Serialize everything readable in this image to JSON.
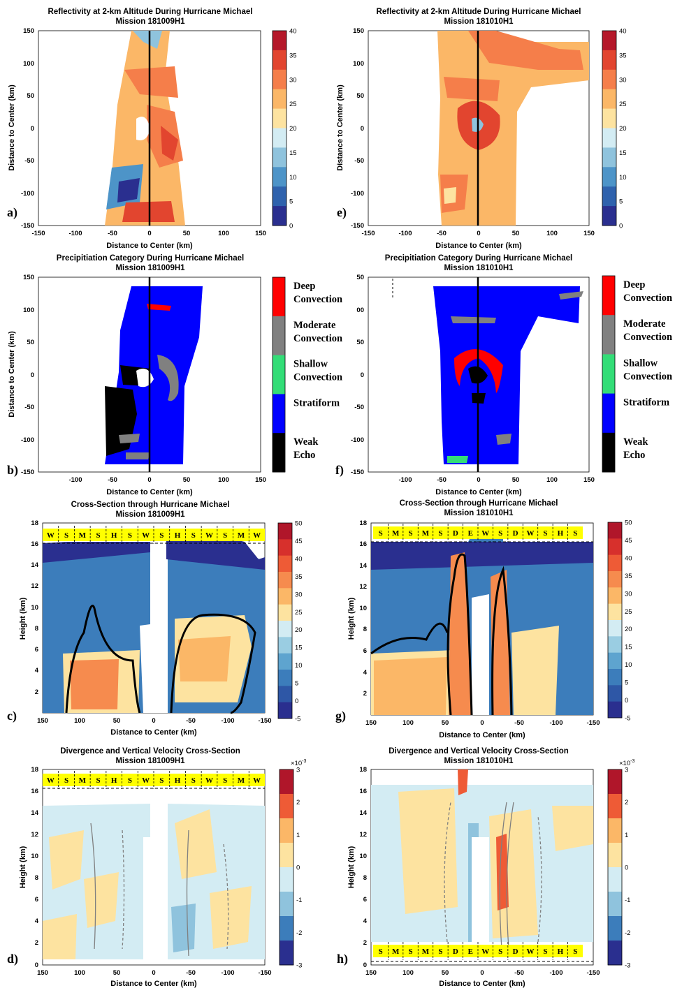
{
  "panels": [
    {
      "letter": "a)",
      "title": [
        "Reflectivity at 2-km Altitude During Hurricane Michael",
        "Mission 181009H1"
      ]
    },
    {
      "letter": "e)",
      "title": [
        "Reflectivity at 2-km Altitude During Hurricane Michael",
        "Mission 181010H1"
      ]
    },
    {
      "letter": "b)",
      "title": [
        "Precipitiation Category During Hurricane Michael",
        "Mission 181009H1"
      ]
    },
    {
      "letter": "f)",
      "title": [
        "Precipitiation Category During Hurricane Michael",
        "Mission 181010H1"
      ]
    },
    {
      "letter": "c)",
      "title": [
        "Cross-Section through Hurricane Michael",
        "Mission 181009H1"
      ]
    },
    {
      "letter": "g)",
      "title": [
        "Cross-Section through Hurricane Michael",
        "Mission 181010H1"
      ]
    },
    {
      "letter": "d)",
      "title": [
        "Divergence and Vertical Velocity Cross-Section",
        "Mission 181009H1"
      ]
    },
    {
      "letter": "h)",
      "title": [
        "Divergence and Vertical Velocity Cross-Section",
        "Mission 181010H1"
      ]
    }
  ],
  "axes": {
    "plan_x_label": "Distance to Center (km)",
    "plan_y_label": "Distance to Center (km)",
    "section_x_label": "Distance to Center (km)",
    "section_y_label": "Height (km)",
    "plan_xticks": [
      "-150",
      "-100",
      "-50",
      "0",
      "50",
      "100",
      "150"
    ],
    "plan_yticks": [
      "150",
      "100",
      "50",
      "0",
      "-50",
      "-100",
      "-150"
    ],
    "category_xticks": [
      "-100",
      "-50",
      "0",
      "50",
      "100",
      "150"
    ],
    "category_yticks_b": [
      "150",
      "100",
      "50",
      "0",
      "-50",
      "-100",
      "-150"
    ],
    "category_yticks_f": [
      "50",
      "00",
      "50",
      "0",
      "-50",
      "-100",
      "-150"
    ],
    "section_xticks": [
      "150",
      "100",
      "50",
      "0",
      "-50",
      "-100",
      "-150"
    ],
    "section_yticks": [
      "18",
      "16",
      "14",
      "12",
      "10",
      "8",
      "6",
      "4",
      "2",
      "0"
    ]
  },
  "colorbars": {
    "reflectivity_ticks": [
      "40",
      "35",
      "30",
      "25",
      "20",
      "15",
      "10",
      "5",
      "0"
    ],
    "section_ticks": [
      "50",
      "45",
      "40",
      "35",
      "30",
      "25",
      "20",
      "15",
      "10",
      "5",
      "0",
      "-5"
    ],
    "divergence_ticks": [
      "3",
      "2",
      "1",
      "0",
      "-1",
      "-2",
      "-3"
    ],
    "divergence_exponent": "×10",
    "divergence_exponent_power": "-3",
    "colors_reflectivity": [
      "#2a2f8f",
      "#2f62ad",
      "#4d94c8",
      "#8fc3dd",
      "#d3ecf3",
      "#fde3a0",
      "#fbb767",
      "#f57e4a",
      "#e2452f",
      "#b5182a"
    ],
    "colors_section": [
      "#2a2f8f",
      "#2e57a6",
      "#3c7dbb",
      "#5ea4cf",
      "#9acde2",
      "#d3ecf3",
      "#fde3a0",
      "#fbb767",
      "#f68b4e",
      "#ee5b36",
      "#d7302c",
      "#b0162a"
    ],
    "colors_divergence": [
      "#2a2f8f",
      "#3c7dbb",
      "#8fc3dd",
      "#d3ecf3",
      "#fde3a0",
      "#fbb767",
      "#ee5b36",
      "#b0162a"
    ]
  },
  "categories": [
    {
      "label": [
        "Deep",
        "Convection"
      ],
      "color": "#ff0000"
    },
    {
      "label": [
        "Moderate",
        "Convection"
      ],
      "color": "#808080"
    },
    {
      "label": [
        "Shallow",
        "Convection"
      ],
      "color": "#33dd77"
    },
    {
      "label": [
        "Stratiform"
      ],
      "color": "#0000ff"
    },
    {
      "label": [
        "Weak",
        "Echo"
      ],
      "color": "#000000"
    }
  ],
  "bands": {
    "mission1": [
      "W",
      "S",
      "M",
      "S",
      "H",
      "S",
      "W",
      "S",
      "H",
      "S",
      "W",
      "S",
      "M",
      "W"
    ],
    "mission2": [
      "S",
      "M",
      "S",
      "M",
      "S",
      "D",
      "E",
      "W",
      "S",
      "D",
      "W",
      "S",
      "H",
      "S"
    ]
  },
  "colors": {
    "band": "#ffff00",
    "track": "#000000"
  }
}
